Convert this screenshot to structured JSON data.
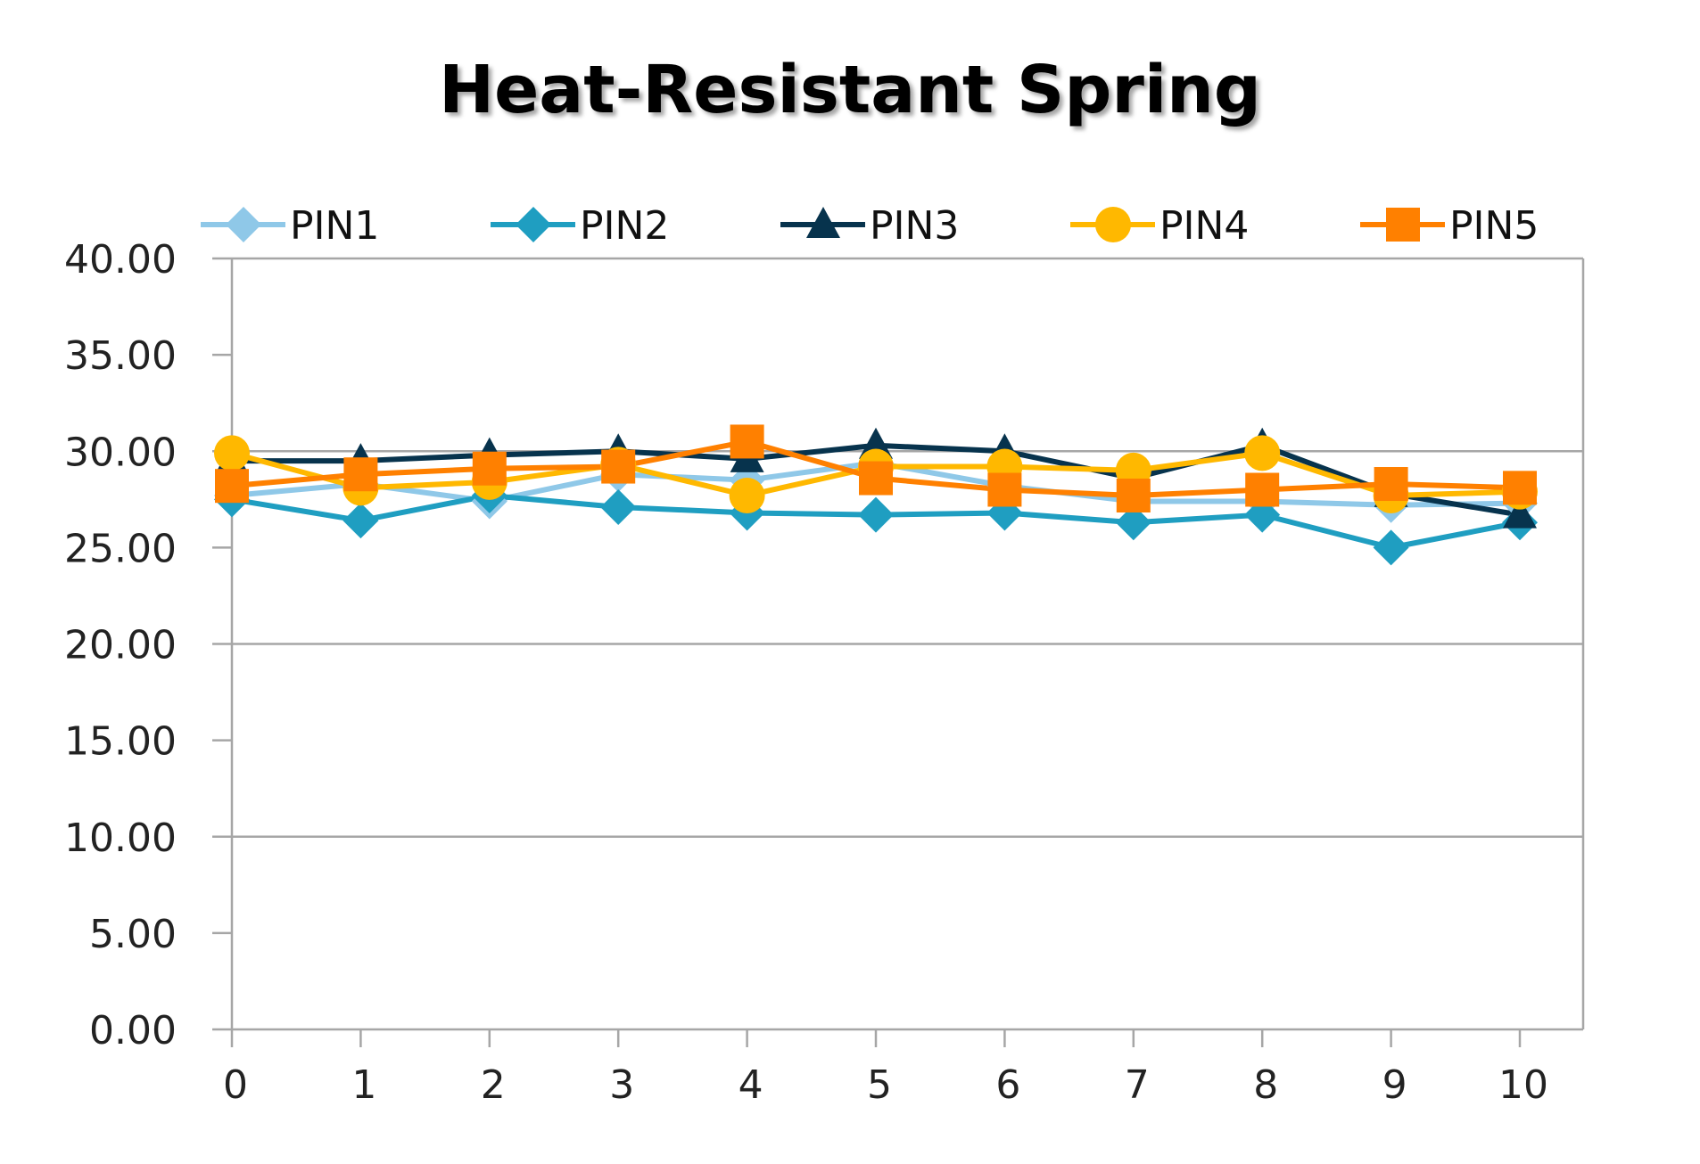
{
  "chart_data": {
    "type": "line",
    "title": "Heat-Resistant Spring",
    "xlabel": "",
    "ylabel": "",
    "x": [
      0,
      1,
      2,
      3,
      4,
      5,
      6,
      7,
      8,
      9,
      10
    ],
    "x_tick_labels": [
      "0",
      "1",
      "2",
      "3",
      "4",
      "5",
      "6",
      "7",
      "8",
      "9",
      "10"
    ],
    "ylim": [
      0,
      40
    ],
    "y_tick_labels": [
      "0.00",
      "5.00",
      "10.00",
      "15.00",
      "20.00",
      "25.00",
      "30.00",
      "35.00",
      "40.00"
    ],
    "y_ticks": [
      0,
      5,
      10,
      15,
      20,
      25,
      30,
      35,
      40
    ],
    "grid": "horizontal major at 0, 10, 20, 30, 40",
    "legend_position": "top",
    "series": [
      {
        "name": "PIN1",
        "color": "#8fc8e8",
        "marker": "diamond",
        "values": [
          27.7,
          28.3,
          27.4,
          28.8,
          28.5,
          29.4,
          28.2,
          27.4,
          27.4,
          27.2,
          27.3
        ]
      },
      {
        "name": "PIN2",
        "color": "#1f9ec1",
        "marker": "diamond",
        "values": [
          27.5,
          26.4,
          27.7,
          27.1,
          26.8,
          26.7,
          26.8,
          26.3,
          26.7,
          25.0,
          26.3
        ]
      },
      {
        "name": "PIN3",
        "color": "#07334d",
        "marker": "triangle",
        "values": [
          29.5,
          29.5,
          29.8,
          30.0,
          29.6,
          30.3,
          30.0,
          28.6,
          30.3,
          27.8,
          26.7
        ]
      },
      {
        "name": "PIN4",
        "color": "#ffb800",
        "marker": "circle",
        "values": [
          29.9,
          28.1,
          28.4,
          29.3,
          27.7,
          29.2,
          29.2,
          29.0,
          29.9,
          27.7,
          27.9
        ]
      },
      {
        "name": "PIN5",
        "color": "#ff8000",
        "marker": "square",
        "values": [
          28.2,
          28.8,
          29.1,
          29.2,
          30.5,
          28.6,
          28.0,
          27.7,
          28.0,
          28.3,
          28.1
        ]
      }
    ]
  }
}
